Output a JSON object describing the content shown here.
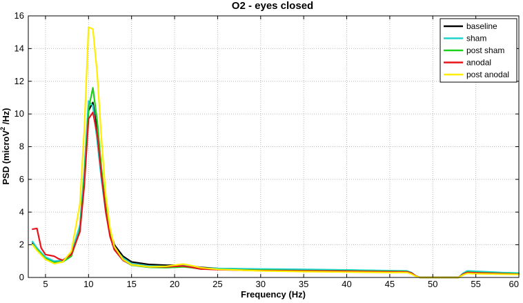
{
  "chart_data": {
    "type": "line",
    "title": "O2 - eyes closed",
    "xlabel": "Frequency (Hz)",
    "ylabel": {
      "prefix": "PSD (microV",
      "sup": "2",
      "suffix": " /Hz)"
    },
    "xlim": [
      3,
      60
    ],
    "ylim": [
      0,
      16
    ],
    "xticks": [
      5,
      10,
      15,
      20,
      25,
      30,
      35,
      40,
      45,
      50,
      55,
      60
    ],
    "yticks": [
      0,
      2,
      4,
      6,
      8,
      10,
      12,
      14,
      16
    ],
    "grid": true,
    "legend_position": "top-right",
    "series": [
      {
        "name": "baseline",
        "color": "#000000",
        "points": [
          [
            3.5,
            2.1
          ],
          [
            4,
            1.8
          ],
          [
            5,
            1.2
          ],
          [
            6,
            0.95
          ],
          [
            7,
            1.0
          ],
          [
            8,
            1.4
          ],
          [
            9,
            3.0
          ],
          [
            9.5,
            6.0
          ],
          [
            10,
            10.2
          ],
          [
            10.5,
            10.7
          ],
          [
            11,
            9.0
          ],
          [
            11.5,
            6.5
          ],
          [
            12,
            4.3
          ],
          [
            12.5,
            2.8
          ],
          [
            13,
            2.0
          ],
          [
            14,
            1.3
          ],
          [
            15,
            0.95
          ],
          [
            17,
            0.8
          ],
          [
            19,
            0.75
          ],
          [
            20,
            0.75
          ],
          [
            21,
            0.75
          ],
          [
            22,
            0.7
          ],
          [
            23,
            0.62
          ],
          [
            25,
            0.55
          ],
          [
            30,
            0.5
          ],
          [
            35,
            0.47
          ],
          [
            40,
            0.45
          ],
          [
            45,
            0.4
          ],
          [
            47,
            0.38
          ],
          [
            47.5,
            0.3
          ],
          [
            48,
            0.1
          ],
          [
            48.5,
            0
          ],
          [
            53,
            0
          ],
          [
            53.5,
            0.2
          ],
          [
            54,
            0.33
          ],
          [
            55,
            0.32
          ],
          [
            58,
            0.27
          ],
          [
            60,
            0.25
          ]
        ]
      },
      {
        "name": "sham",
        "color": "#1fd3cf",
        "points": [
          [
            3.5,
            2.2
          ],
          [
            4,
            1.8
          ],
          [
            5,
            1.25
          ],
          [
            6,
            1.0
          ],
          [
            7,
            1.05
          ],
          [
            8,
            1.45
          ],
          [
            9,
            3.2
          ],
          [
            9.5,
            6.5
          ],
          [
            10,
            10.8
          ],
          [
            10.5,
            10.5
          ],
          [
            11,
            8.4
          ],
          [
            11.5,
            6.0
          ],
          [
            12,
            4.0
          ],
          [
            12.5,
            2.6
          ],
          [
            13,
            1.8
          ],
          [
            14,
            1.2
          ],
          [
            15,
            0.85
          ],
          [
            17,
            0.7
          ],
          [
            19,
            0.68
          ],
          [
            20,
            0.7
          ],
          [
            21,
            0.75
          ],
          [
            22,
            0.68
          ],
          [
            23,
            0.58
          ],
          [
            25,
            0.55
          ],
          [
            30,
            0.52
          ],
          [
            35,
            0.5
          ],
          [
            40,
            0.46
          ],
          [
            45,
            0.42
          ],
          [
            47,
            0.4
          ],
          [
            47.5,
            0.3
          ],
          [
            48,
            0.1
          ],
          [
            48.5,
            0
          ],
          [
            53,
            0
          ],
          [
            53.5,
            0.25
          ],
          [
            54,
            0.4
          ],
          [
            55,
            0.38
          ],
          [
            58,
            0.3
          ],
          [
            60,
            0.27
          ]
        ]
      },
      {
        "name": "post sham",
        "color": "#1bd21b",
        "points": [
          [
            3.5,
            2.0
          ],
          [
            4,
            1.7
          ],
          [
            5,
            1.15
          ],
          [
            6,
            0.9
          ],
          [
            7,
            0.95
          ],
          [
            8,
            1.3
          ],
          [
            9,
            2.9
          ],
          [
            9.5,
            6.0
          ],
          [
            10,
            10.3
          ],
          [
            10.5,
            11.6
          ],
          [
            11,
            9.6
          ],
          [
            11.5,
            6.7
          ],
          [
            12,
            4.2
          ],
          [
            12.5,
            2.6
          ],
          [
            13,
            1.7
          ],
          [
            14,
            1.05
          ],
          [
            15,
            0.75
          ],
          [
            17,
            0.62
          ],
          [
            19,
            0.6
          ],
          [
            20,
            0.62
          ],
          [
            21,
            0.65
          ],
          [
            22,
            0.6
          ],
          [
            23,
            0.52
          ],
          [
            25,
            0.5
          ],
          [
            30,
            0.45
          ],
          [
            35,
            0.42
          ],
          [
            40,
            0.4
          ],
          [
            45,
            0.37
          ],
          [
            47,
            0.36
          ],
          [
            47.5,
            0.28
          ],
          [
            48,
            0.1
          ],
          [
            48.5,
            0
          ],
          [
            53,
            0
          ],
          [
            53.5,
            0.2
          ],
          [
            54,
            0.33
          ],
          [
            55,
            0.3
          ],
          [
            58,
            0.25
          ],
          [
            60,
            0.22
          ]
        ]
      },
      {
        "name": "anodal",
        "color": "#e8121b",
        "points": [
          [
            3.5,
            2.95
          ],
          [
            4,
            3.0
          ],
          [
            4.5,
            1.8
          ],
          [
            5,
            1.4
          ],
          [
            5.5,
            1.35
          ],
          [
            6,
            1.3
          ],
          [
            6.5,
            1.15
          ],
          [
            7,
            1.05
          ],
          [
            8,
            1.4
          ],
          [
            9,
            2.8
          ],
          [
            9.5,
            5.6
          ],
          [
            10,
            9.7
          ],
          [
            10.5,
            10.1
          ],
          [
            11,
            8.8
          ],
          [
            11.5,
            6.3
          ],
          [
            12,
            4.0
          ],
          [
            12.5,
            2.5
          ],
          [
            13,
            1.7
          ],
          [
            14,
            1.05
          ],
          [
            15,
            0.78
          ],
          [
            17,
            0.65
          ],
          [
            19,
            0.65
          ],
          [
            20,
            0.68
          ],
          [
            21,
            0.7
          ],
          [
            22,
            0.62
          ],
          [
            23,
            0.52
          ],
          [
            25,
            0.48
          ],
          [
            30,
            0.42
          ],
          [
            35,
            0.4
          ],
          [
            40,
            0.38
          ],
          [
            45,
            0.35
          ],
          [
            47,
            0.34
          ],
          [
            47.5,
            0.27
          ],
          [
            48,
            0.1
          ],
          [
            48.5,
            0
          ],
          [
            53,
            0
          ],
          [
            53.5,
            0.2
          ],
          [
            54,
            0.3
          ],
          [
            55,
            0.28
          ],
          [
            58,
            0.23
          ],
          [
            60,
            0.2
          ]
        ]
      },
      {
        "name": "post anodal",
        "color": "#ffee00",
        "points": [
          [
            3.5,
            2.0
          ],
          [
            4,
            1.65
          ],
          [
            5,
            1.1
          ],
          [
            6,
            0.85
          ],
          [
            7,
            0.95
          ],
          [
            8,
            1.6
          ],
          [
            9,
            4.5
          ],
          [
            9.5,
            9.0
          ],
          [
            10,
            15.3
          ],
          [
            10.5,
            15.2
          ],
          [
            11,
            12.5
          ],
          [
            11.5,
            8.5
          ],
          [
            12,
            5.0
          ],
          [
            12.5,
            3.0
          ],
          [
            13,
            1.9
          ],
          [
            14,
            1.1
          ],
          [
            15,
            0.78
          ],
          [
            17,
            0.65
          ],
          [
            19,
            0.68
          ],
          [
            20,
            0.75
          ],
          [
            21,
            0.82
          ],
          [
            22,
            0.72
          ],
          [
            23,
            0.6
          ],
          [
            25,
            0.5
          ],
          [
            30,
            0.4
          ],
          [
            35,
            0.36
          ],
          [
            40,
            0.33
          ],
          [
            45,
            0.3
          ],
          [
            47,
            0.3
          ],
          [
            47.5,
            0.22
          ],
          [
            48,
            0.08
          ],
          [
            48.5,
            0
          ],
          [
            53,
            0
          ],
          [
            53.5,
            0.15
          ],
          [
            54,
            0.25
          ],
          [
            55,
            0.23
          ],
          [
            58,
            0.2
          ],
          [
            60,
            0.18
          ]
        ]
      }
    ]
  }
}
